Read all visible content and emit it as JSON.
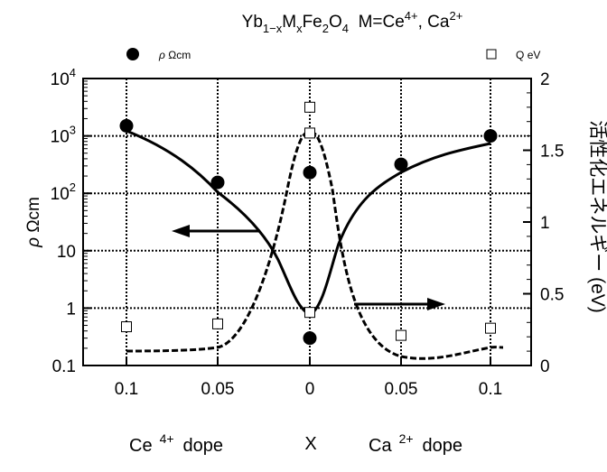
{
  "chart_data": {
    "type": "scatter",
    "title": {
      "base1": "Yb",
      "sub1": "1−x",
      "base2": "M",
      "sub2": "x",
      "base3": "Fe",
      "sub3": "2",
      "base4": "O",
      "sub4": "4",
      "rest": "  M=Ce",
      "sup1": "4+",
      "rest2": ", Ca",
      "sup2": "2+"
    },
    "categories": [
      "0.1",
      "0.05",
      "0",
      "0.05",
      "0.1"
    ],
    "x_labels": {
      "left_base": "Ce",
      "left_sup": "4+",
      "left_rest": "dope",
      "center": "X",
      "right_base": "Ca",
      "right_sup": "2+",
      "right_rest": "dope"
    },
    "y_left": {
      "label_greek": "ρ",
      "label_unit": "Ωcm",
      "scale": "log",
      "range": [
        0.1,
        10000
      ],
      "ticks": [
        {
          "base": "0.1",
          "sup": ""
        },
        {
          "base": "1",
          "sup": ""
        },
        {
          "base": "10",
          "sup": ""
        },
        {
          "base": "10",
          "sup": "2"
        },
        {
          "base": "10",
          "sup": "3"
        },
        {
          "base": "10",
          "sup": "4"
        }
      ]
    },
    "y_right": {
      "label": "活性化エネルギー (eV)",
      "scale": "linear",
      "range": [
        0,
        2
      ],
      "ticks": [
        "0",
        "0.5",
        "1",
        "1.5",
        "2"
      ]
    },
    "legend": {
      "rho": {
        "greek": "ρ",
        "unit": "Ωcm"
      },
      "q": {
        "main": "Q",
        "unit": "eV"
      }
    },
    "series": [
      {
        "name": "ρ Ωcm",
        "axis": "left",
        "marker": "filled-circle",
        "x": [
          0,
          1,
          2,
          2,
          3,
          4
        ],
        "values": [
          1500,
          155,
          230,
          0.3,
          320,
          1000
        ]
      },
      {
        "name": "Q eV",
        "axis": "right",
        "marker": "open-square",
        "x": [
          0,
          1,
          2,
          2,
          2,
          3,
          4
        ],
        "values": [
          0.27,
          0.29,
          1.8,
          1.62,
          0.37,
          0.21,
          0.26
        ]
      }
    ],
    "grid": true,
    "annotations": [
      "arrow-left",
      "arrow-right"
    ]
  }
}
